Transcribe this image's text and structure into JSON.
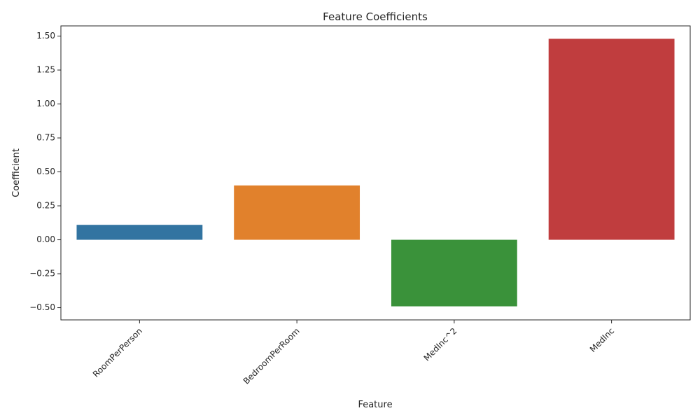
{
  "chart_data": {
    "type": "bar",
    "title": "Feature Coefficients",
    "xlabel": "Feature",
    "ylabel": "Coefficient",
    "categories": [
      "RoomPerPerson",
      "BedroomPerRoom",
      "MedInc^2",
      "MedInc"
    ],
    "values": [
      0.11,
      0.4,
      -0.49,
      1.48
    ],
    "colors": [
      "#3274a1",
      "#e1812c",
      "#3a923a",
      "#c03d3e"
    ],
    "ylim": [
      -0.59,
      1.575
    ],
    "yticks": [
      -0.5,
      -0.25,
      0.0,
      0.25,
      0.5,
      0.75,
      1.0,
      1.25,
      1.5
    ],
    "ytick_labels": [
      "−0.50",
      "−0.25",
      "0.00",
      "0.25",
      "0.50",
      "0.75",
      "1.00",
      "1.25",
      "1.50"
    ],
    "xtick_rotation_deg": 45,
    "grid": false,
    "legend": "none"
  }
}
